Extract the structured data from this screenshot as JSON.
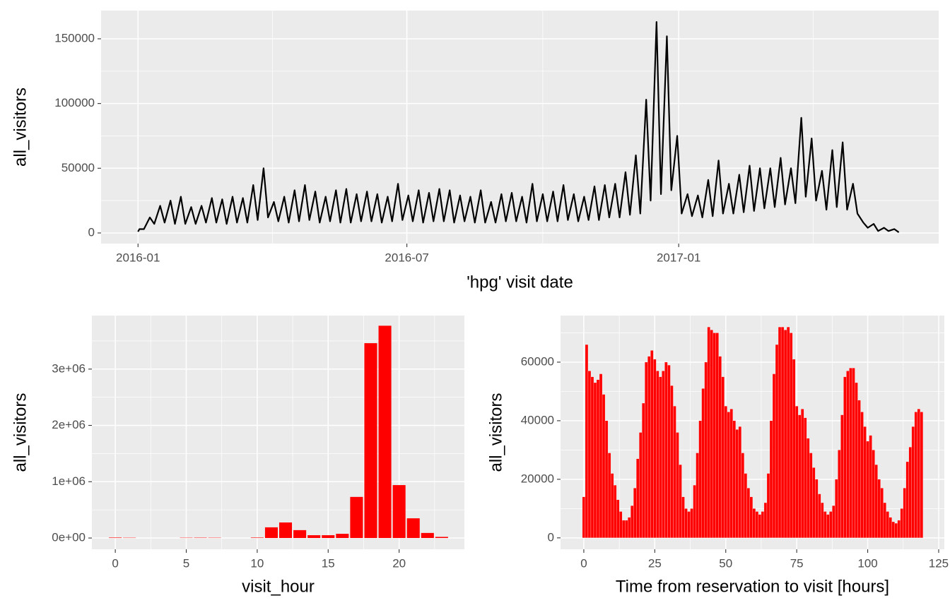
{
  "chart_data": [
    {
      "type": "line",
      "xlabel": "'hpg' visit date",
      "ylabel": "all_visitors",
      "color": "#000000",
      "x": [
        0,
        1,
        4,
        8,
        11,
        15,
        18,
        22,
        25,
        29,
        32,
        36,
        39,
        43,
        46,
        50,
        53,
        57,
        60,
        64,
        67,
        71,
        74,
        78,
        81,
        85,
        88,
        92,
        95,
        99,
        102,
        106,
        109,
        113,
        116,
        120,
        123,
        127,
        130,
        134,
        137,
        141,
        144,
        148,
        151,
        155,
        158,
        162,
        165,
        169,
        172,
        176,
        179,
        183,
        186,
        190,
        193,
        197,
        200,
        204,
        207,
        211,
        214,
        218,
        221,
        225,
        228,
        232,
        235,
        239,
        242,
        246,
        249,
        253,
        256,
        260,
        263,
        267,
        270,
        274,
        277,
        281,
        284,
        288,
        291,
        295,
        298,
        302,
        305,
        309,
        312,
        316,
        319,
        323,
        326,
        330,
        333,
        337,
        340,
        344,
        347,
        351,
        354,
        358,
        361,
        365,
        368,
        372,
        375,
        379,
        382,
        386,
        389,
        393,
        396,
        400,
        403,
        407,
        410,
        414,
        417,
        421,
        424,
        428,
        431,
        435,
        438,
        442,
        445,
        449,
        452,
        456,
        459,
        463,
        466,
        470,
        473,
        477,
        480,
        484,
        487,
        491,
        494,
        498,
        501,
        505,
        508,
        512,
        515
      ],
      "values": [
        1000,
        3000,
        3000,
        12000,
        7000,
        21000,
        8000,
        25000,
        7000,
        28000,
        7000,
        20000,
        7000,
        21000,
        8000,
        27000,
        8000,
        26000,
        7000,
        28000,
        8000,
        27000,
        8000,
        37000,
        10000,
        50000,
        12000,
        24000,
        9000,
        28000,
        8000,
        33000,
        9000,
        37000,
        10000,
        32000,
        8000,
        28000,
        9000,
        33000,
        8000,
        34000,
        8000,
        30000,
        9000,
        32000,
        9000,
        30000,
        8000,
        28000,
        9000,
        38000,
        10000,
        29000,
        9000,
        33000,
        8000,
        31000,
        9000,
        34000,
        9000,
        33000,
        8000,
        29000,
        9000,
        28000,
        8000,
        33000,
        8000,
        24000,
        8000,
        30000,
        9000,
        31000,
        9000,
        28000,
        8000,
        38000,
        9000,
        30000,
        9000,
        32000,
        9000,
        37000,
        10000,
        30000,
        9000,
        28000,
        10000,
        36000,
        10000,
        37000,
        12000,
        38000,
        12000,
        47000,
        14000,
        60000,
        15000,
        103000,
        25000,
        163000,
        30000,
        152000,
        33000,
        75000,
        15000,
        30000,
        13000,
        29000,
        12000,
        41000,
        13000,
        56000,
        15000,
        38000,
        15000,
        45000,
        16000,
        52000,
        17000,
        50000,
        19000,
        50000,
        20000,
        58000,
        22000,
        50000,
        23000,
        89000,
        28000,
        73000,
        25000,
        48000,
        18000,
        64000,
        20000,
        70000,
        18000,
        38000,
        15000,
        8000,
        4000,
        7000,
        1500,
        4000,
        1500,
        3000,
        500
      ],
      "xlim": [
        -25,
        542
      ],
      "xticks": [
        {
          "value": 0,
          "label": "2016-01"
        },
        {
          "value": 182,
          "label": "2016-07"
        },
        {
          "value": 366,
          "label": "2017-01"
        }
      ],
      "ylim": [
        -8200,
        171800
      ],
      "yticks": [
        0,
        50000,
        100000,
        150000
      ],
      "grid": true
    },
    {
      "type": "bar",
      "xlabel": "visit_hour",
      "ylabel": "all_visitors",
      "color": "#ff0000",
      "x": [
        0,
        1,
        5,
        6,
        7,
        10,
        11,
        12,
        13,
        14,
        15,
        16,
        17,
        18,
        19,
        20,
        21,
        22,
        23
      ],
      "values": [
        8000,
        5000,
        5000,
        6000,
        5000,
        8000,
        190000,
        276000,
        140000,
        50000,
        50000,
        75000,
        730000,
        3460000,
        3770000,
        940000,
        350000,
        90000,
        20000
      ],
      "xlim": [
        -1.65,
        24.6
      ],
      "xticks": [
        0,
        5,
        10,
        15,
        20
      ],
      "ylim": [
        -200000,
        3950000
      ],
      "yticks": [
        {
          "value": 0,
          "label": "0e+00"
        },
        {
          "value": 1000000,
          "label": "1e+06"
        },
        {
          "value": 2000000,
          "label": "2e+06"
        },
        {
          "value": 3000000,
          "label": "3e+06"
        }
      ],
      "grid": true
    },
    {
      "type": "bar",
      "xlabel": "Time from reservation to visit [hours]",
      "ylabel": "all_visitors",
      "color": "#ff0000",
      "x": [
        0,
        1,
        2,
        3,
        4,
        5,
        6,
        7,
        8,
        9,
        10,
        11,
        12,
        13,
        14,
        15,
        16,
        17,
        18,
        19,
        20,
        21,
        22,
        23,
        24,
        25,
        26,
        27,
        28,
        29,
        30,
        31,
        32,
        33,
        34,
        35,
        36,
        37,
        38,
        39,
        40,
        41,
        42,
        43,
        44,
        45,
        46,
        47,
        48,
        49,
        50,
        51,
        52,
        53,
        54,
        55,
        56,
        57,
        58,
        59,
        60,
        61,
        62,
        63,
        64,
        65,
        66,
        67,
        68,
        69,
        70,
        71,
        72,
        73,
        74,
        75,
        76,
        77,
        78,
        79,
        80,
        81,
        82,
        83,
        84,
        85,
        86,
        87,
        88,
        89,
        90,
        91,
        92,
        93,
        94,
        95,
        96,
        97,
        98,
        99,
        100,
        101,
        102,
        103,
        104,
        105,
        106,
        107,
        108,
        109,
        110,
        111,
        112,
        113,
        114,
        115,
        116,
        117,
        118,
        119
      ],
      "values": [
        14000,
        66000,
        57000,
        55000,
        53000,
        54000,
        56000,
        49000,
        40000,
        29000,
        22000,
        18000,
        13000,
        9000,
        6000,
        6000,
        7000,
        11000,
        17000,
        27000,
        36000,
        46000,
        60000,
        62000,
        64000,
        61000,
        57000,
        55000,
        57000,
        60000,
        59000,
        52000,
        45000,
        36000,
        25000,
        14000,
        10000,
        9000,
        10000,
        18000,
        29000,
        40000,
        51000,
        60000,
        72000,
        71000,
        70000,
        70000,
        62000,
        55000,
        45000,
        43000,
        44000,
        40000,
        37000,
        38000,
        29000,
        22000,
        17000,
        14000,
        10000,
        9000,
        8000,
        9000,
        12000,
        22000,
        40000,
        56000,
        66000,
        72000,
        72000,
        71000,
        72000,
        70000,
        61000,
        45000,
        42000,
        44000,
        41000,
        34000,
        29000,
        24000,
        20000,
        15000,
        12000,
        9000,
        8000,
        9000,
        11000,
        20000,
        30000,
        42000,
        55000,
        57000,
        58000,
        58000,
        53000,
        47000,
        43000,
        38000,
        33000,
        35000,
        30000,
        25000,
        20000,
        17000,
        12000,
        9000,
        7000,
        5500,
        5000,
        6000,
        10000,
        17000,
        26000,
        31000,
        38000,
        43000,
        44000,
        43000
      ],
      "xlim": [
        -8.2,
        127
      ],
      "xticks": [
        0,
        25,
        50,
        75,
        100,
        125
      ],
      "ylim": [
        -3900,
        75900
      ],
      "yticks": [
        0,
        20000,
        40000,
        60000
      ],
      "grid": true
    }
  ]
}
